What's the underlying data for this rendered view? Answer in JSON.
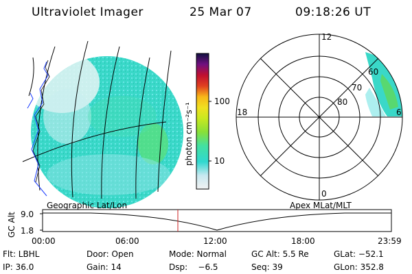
{
  "header": {
    "instrument": "Ultraviolet Imager",
    "date": "25 Mar 07",
    "time": "09:18:26 UT"
  },
  "colorbar": {
    "label": "photon cm⁻²s⁻¹",
    "ticks": [
      "100",
      "10"
    ],
    "scale": "log",
    "colors": [
      "#f2f2f2",
      "#c8e8f0",
      "#6ee0e0",
      "#30d8d0",
      "#44e0a0",
      "#88e038",
      "#c8e820",
      "#f0e020",
      "#f8b818",
      "#f08018",
      "#e04020",
      "#d01818",
      "#b01040",
      "#901060",
      "#601080",
      "#301060",
      "#101040"
    ]
  },
  "polar_plot": {
    "labels": {
      "top": "12",
      "bottom": "0",
      "left": "18",
      "right": "6"
    },
    "ring_labels": [
      "60",
      "70",
      "80"
    ]
  },
  "geo_map": {
    "land_color": "#1a3cff",
    "emission_color": "#38dcd0"
  },
  "timeline": {
    "left_label": "Geographic Lat/Lon",
    "right_label": "Apex MLat/MLT",
    "y_axis_label": "GC Alt",
    "y_ticks": [
      "9.0",
      "1.8"
    ],
    "x_ticks": [
      "00:00",
      "06:00",
      "12:00",
      "18:00",
      "23:59"
    ],
    "marker_time": "09:18:26",
    "marker_color": "#cc2222"
  },
  "status": {
    "row1": {
      "flt": "Flt: LBHL",
      "door": "Door: Open",
      "mode": "Mode: Normal",
      "gcalt": "GC Alt: 5.5 Re",
      "glat": "GLat: −52.1"
    },
    "row2": {
      "ip": "IP: 36.0",
      "gain": "Gain: 14",
      "dsp": "Dsp:    −6.5",
      "seq": "Seq: 39",
      "glon": "GLon: 352.8"
    }
  }
}
